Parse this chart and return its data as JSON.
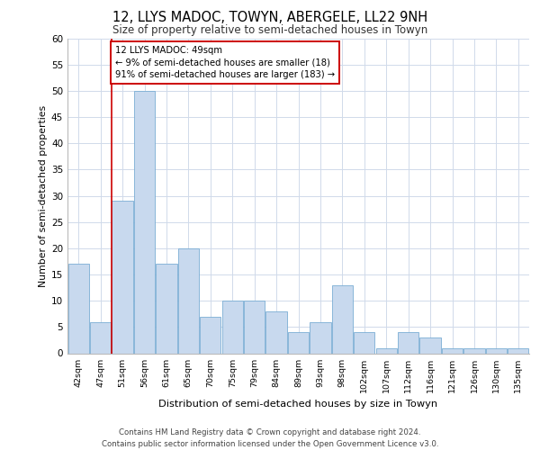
{
  "title": "12, LLYS MADOC, TOWYN, ABERGELE, LL22 9NH",
  "subtitle": "Size of property relative to semi-detached houses in Towyn",
  "xlabel": "Distribution of semi-detached houses by size in Towyn",
  "ylabel": "Number of semi-detached properties",
  "categories": [
    "42sqm",
    "47sqm",
    "51sqm",
    "56sqm",
    "61sqm",
    "65sqm",
    "70sqm",
    "75sqm",
    "79sqm",
    "84sqm",
    "89sqm",
    "93sqm",
    "98sqm",
    "102sqm",
    "107sqm",
    "112sqm",
    "116sqm",
    "121sqm",
    "126sqm",
    "130sqm",
    "135sqm"
  ],
  "values": [
    17,
    6,
    29,
    50,
    17,
    20,
    7,
    10,
    10,
    8,
    4,
    6,
    13,
    4,
    1,
    4,
    3,
    1,
    1,
    1,
    1
  ],
  "bar_color": "#c8d9ee",
  "bar_edge_color": "#7aadd4",
  "annotation_text": "12 LLYS MADOC: 49sqm\n← 9% of semi-detached houses are smaller (18)\n91% of semi-detached houses are larger (183) →",
  "annotation_box_color": "#ffffff",
  "annotation_box_edge_color": "#cc0000",
  "red_line_x": 1.5,
  "ylim": [
    0,
    60
  ],
  "yticks": [
    0,
    5,
    10,
    15,
    20,
    25,
    30,
    35,
    40,
    45,
    50,
    55,
    60
  ],
  "footer_line1": "Contains HM Land Registry data © Crown copyright and database right 2024.",
  "footer_line2": "Contains public sector information licensed under the Open Government Licence v3.0.",
  "background_color": "#ffffff",
  "grid_color": "#d0daea"
}
